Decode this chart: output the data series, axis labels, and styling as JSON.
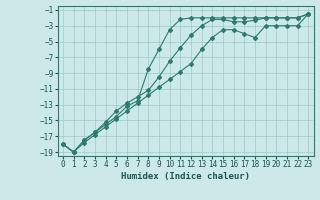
{
  "xlabel": "Humidex (Indice chaleur)",
  "bg_color": "#cce8e8",
  "grid_color": "#99cccc",
  "line_color": "#2d7a6e",
  "xlim": [
    -0.5,
    23.5
  ],
  "ylim": [
    -19.5,
    -0.5
  ],
  "xticks": [
    0,
    1,
    2,
    3,
    4,
    5,
    6,
    7,
    8,
    9,
    10,
    11,
    12,
    13,
    14,
    15,
    16,
    17,
    18,
    19,
    20,
    21,
    22,
    23
  ],
  "yticks": [
    -1,
    -3,
    -5,
    -7,
    -9,
    -11,
    -13,
    -15,
    -17,
    -19
  ],
  "line1_x": [
    0,
    1,
    2,
    3,
    4,
    5,
    6,
    7,
    8,
    9,
    10,
    11,
    12,
    13,
    14,
    15,
    16,
    17,
    18,
    19,
    20,
    21,
    22,
    23
  ],
  "line1_y": [
    -18.0,
    -19.0,
    -17.5,
    -16.5,
    -15.5,
    -14.5,
    -13.2,
    -12.5,
    -8.5,
    -6.0,
    -3.5,
    -2.2,
    -2.0,
    -2.0,
    -2.0,
    -2.0,
    -2.0,
    -2.0,
    -2.0,
    -2.0,
    -2.0,
    -2.0,
    -2.0,
    -1.5
  ],
  "line2_x": [
    0,
    1,
    2,
    3,
    4,
    5,
    6,
    7,
    8,
    9,
    10,
    11,
    12,
    13,
    14,
    15,
    16,
    17,
    18,
    19,
    20,
    21,
    22,
    23
  ],
  "line2_y": [
    -18.0,
    -19.0,
    -17.5,
    -16.5,
    -15.2,
    -13.8,
    -12.8,
    -12.0,
    -11.2,
    -9.5,
    -7.5,
    -5.8,
    -4.2,
    -3.0,
    -2.2,
    -2.2,
    -2.5,
    -2.5,
    -2.3,
    -2.0,
    -2.0,
    -2.0,
    -2.0,
    -1.5
  ],
  "line3_x": [
    0,
    1,
    2,
    3,
    4,
    5,
    6,
    7,
    8,
    9,
    10,
    11,
    12,
    13,
    14,
    15,
    16,
    17,
    18,
    19,
    20,
    21,
    22,
    23
  ],
  "line3_y": [
    -18.0,
    -19.0,
    -17.8,
    -16.8,
    -15.8,
    -14.8,
    -13.8,
    -12.8,
    -11.8,
    -10.8,
    -9.8,
    -8.8,
    -7.8,
    -6.0,
    -4.5,
    -3.5,
    -3.5,
    -4.0,
    -4.5,
    -3.0,
    -3.0,
    -3.0,
    -3.0,
    -1.5
  ]
}
